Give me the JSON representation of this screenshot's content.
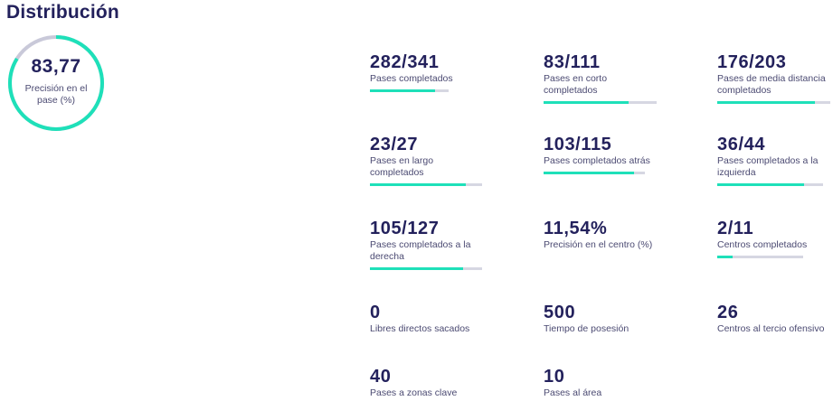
{
  "header": {
    "title": "Distribución"
  },
  "gauge": {
    "value": "83,77",
    "label": "Precisión en el pase (%)",
    "progress": 0.8377
  },
  "colors": {
    "accent": "#1ee0b9",
    "track": "#d6d7e2",
    "text": "#23215c"
  },
  "stats": [
    {
      "value": "282/341",
      "label": "Pases completados",
      "progress": 0.827
    },
    {
      "value": "83/111",
      "label": "Pases en corto completados",
      "progress": 0.748
    },
    {
      "value": "176/203",
      "label": "Pases de media distancia completados",
      "progress": 0.867
    },
    {
      "value": "23/27",
      "label": "Pases en largo completados",
      "progress": 0.852
    },
    {
      "value": "103/115",
      "label": "Pases completados atrás",
      "progress": 0.896
    },
    {
      "value": "36/44",
      "label": "Pases completados a la izquierda",
      "progress": 0.818
    },
    {
      "value": "105/127",
      "label": "Pases completados a la derecha",
      "progress": 0.827
    },
    {
      "value": "11,54%",
      "label": "Precisión en el centro (%)"
    },
    {
      "value": "2/11",
      "label": "Centros completados",
      "progress": 0.182
    },
    {
      "value": "0",
      "label": "Libres directos sacados"
    },
    {
      "value": "500",
      "label": "Tiempo de posesión"
    },
    {
      "value": "26",
      "label": "Centros al tercio ofensivo"
    },
    {
      "value": "40",
      "label": "Pases a zonas clave"
    },
    {
      "value": "10",
      "label": "Pases al área"
    }
  ]
}
